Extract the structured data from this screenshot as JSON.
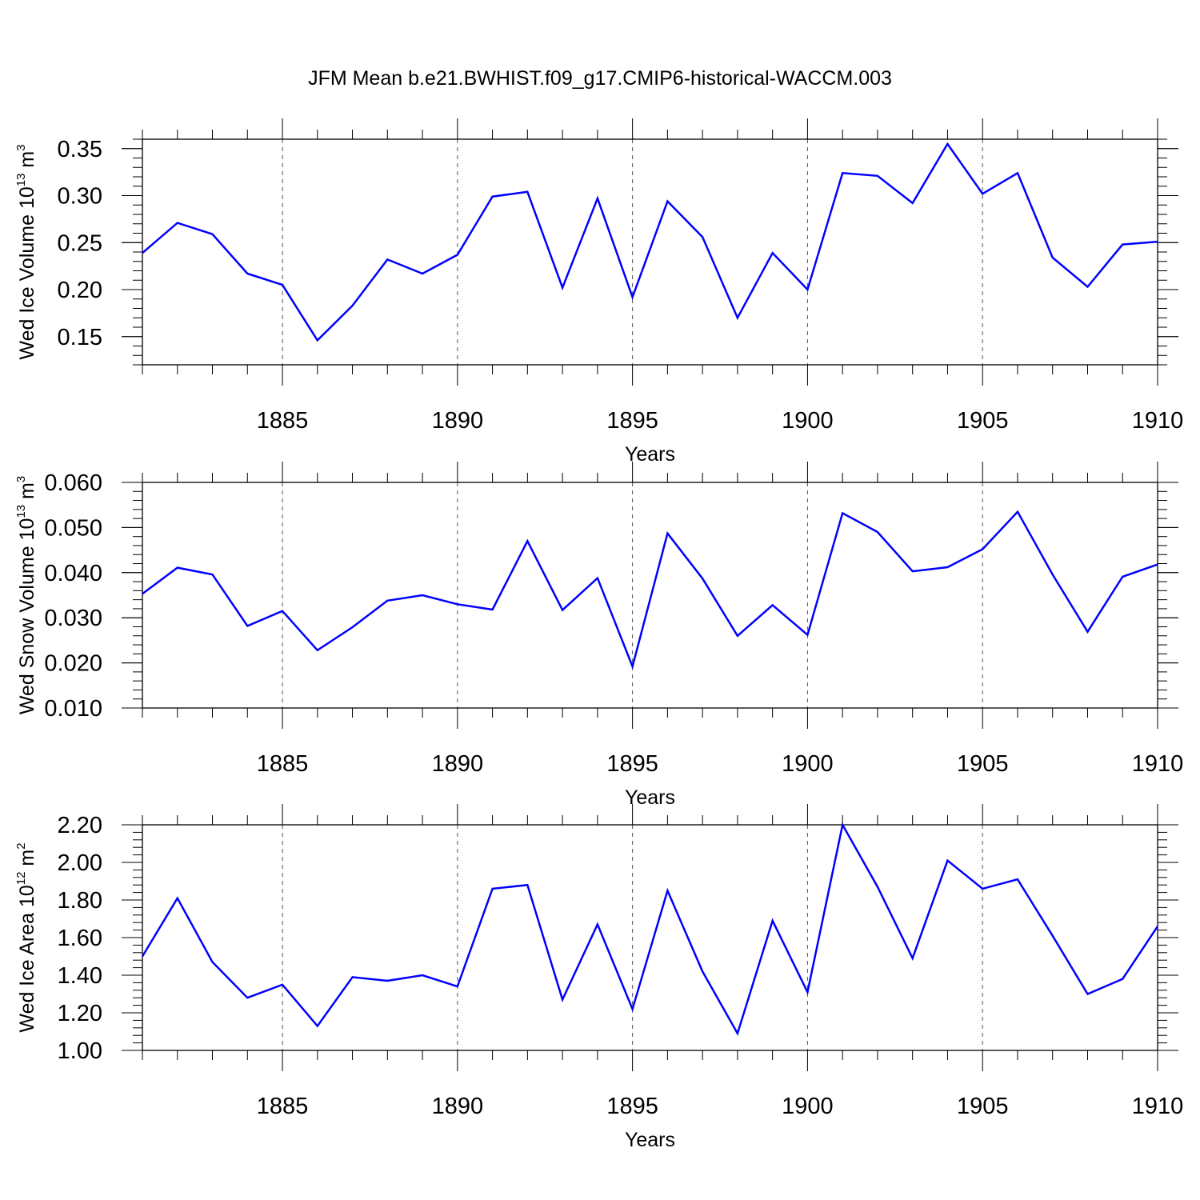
{
  "title": "JFM Mean b.e21.BWHIST.f09_g17.CMIP6-historical-WACCM.003",
  "colors": {
    "line": "#0000ff",
    "axis": "#000000",
    "grid": "#555555"
  },
  "chart_data": [
    {
      "type": "line",
      "ylabel": {
        "text": "Wed Ice Volume 10",
        "exp": "13",
        "unit_text": " m",
        "unit_exp": "3"
      },
      "xlabel": "Years",
      "xlim": [
        1881,
        1910
      ],
      "ylim": [
        0.12,
        0.36
      ],
      "yticks": [
        0.15,
        0.2,
        0.25,
        0.3,
        0.35
      ],
      "ytick_labels": [
        "0.15",
        "0.20",
        "0.25",
        "0.30",
        "0.35"
      ],
      "xticks": [
        1885,
        1890,
        1895,
        1900,
        1905,
        1910
      ],
      "xtick_labels": [
        "1885",
        "1890",
        "1895",
        "1900",
        "1905",
        "1910"
      ],
      "grid": "vertical dashed at major x ticks",
      "x": [
        1881,
        1882,
        1883,
        1884,
        1885,
        1886,
        1887,
        1888,
        1889,
        1890,
        1891,
        1892,
        1893,
        1894,
        1895,
        1896,
        1897,
        1898,
        1899,
        1900,
        1901,
        1902,
        1903,
        1904,
        1905,
        1906,
        1907,
        1908,
        1909,
        1910
      ],
      "series": [
        {
          "values": [
            0.239,
            0.271,
            0.259,
            0.217,
            0.205,
            0.146,
            0.183,
            0.232,
            0.217,
            0.237,
            0.299,
            0.304,
            0.202,
            0.297,
            0.192,
            0.294,
            0.256,
            0.17,
            0.239,
            0.2,
            0.324,
            0.321,
            0.292,
            0.355,
            0.302,
            0.324,
            0.234,
            0.203,
            0.248,
            0.251
          ]
        }
      ]
    },
    {
      "type": "line",
      "ylabel": {
        "text": "Wed Snow Volume 10",
        "exp": "13",
        "unit_text": " m",
        "unit_exp": "3"
      },
      "xlabel": "Years",
      "xlim": [
        1881,
        1910
      ],
      "ylim": [
        0.01,
        0.06
      ],
      "yticks": [
        0.01,
        0.02,
        0.03,
        0.04,
        0.05,
        0.06
      ],
      "ytick_labels": [
        "0.010",
        "0.020",
        "0.030",
        "0.040",
        "0.050",
        "0.060"
      ],
      "xticks": [
        1885,
        1890,
        1895,
        1900,
        1905,
        1910
      ],
      "xtick_labels": [
        "1885",
        "1890",
        "1895",
        "1900",
        "1905",
        "1910"
      ],
      "grid": "vertical dashed at major x ticks",
      "x": [
        1881,
        1882,
        1883,
        1884,
        1885,
        1886,
        1887,
        1888,
        1889,
        1890,
        1891,
        1892,
        1893,
        1894,
        1895,
        1896,
        1897,
        1898,
        1899,
        1900,
        1901,
        1902,
        1903,
        1904,
        1905,
        1906,
        1907,
        1908,
        1909,
        1910
      ],
      "series": [
        {
          "values": [
            0.0353,
            0.0411,
            0.0396,
            0.0282,
            0.0315,
            0.0228,
            0.0279,
            0.0338,
            0.035,
            0.033,
            0.0318,
            0.047,
            0.0317,
            0.0388,
            0.0192,
            0.0487,
            0.0387,
            0.026,
            0.0328,
            0.0262,
            0.0532,
            0.049,
            0.0403,
            0.0412,
            0.0452,
            0.0535,
            0.0396,
            0.0269,
            0.0391,
            0.0418
          ]
        }
      ]
    },
    {
      "type": "line",
      "ylabel": {
        "text": "Wed Ice Area 10",
        "exp": "12",
        "unit_text": " m",
        "unit_exp": "2"
      },
      "xlabel": "Years",
      "xlim": [
        1881,
        1910
      ],
      "ylim": [
        1.0,
        2.2
      ],
      "yticks": [
        1.0,
        1.2,
        1.4,
        1.6,
        1.8,
        2.0,
        2.2
      ],
      "ytick_labels": [
        "1.00",
        "1.20",
        "1.40",
        "1.60",
        "1.80",
        "2.00",
        "2.20"
      ],
      "xticks": [
        1885,
        1890,
        1895,
        1900,
        1905,
        1910
      ],
      "xtick_labels": [
        "1885",
        "1890",
        "1895",
        "1900",
        "1905",
        "1910"
      ],
      "grid": "vertical dashed at major x ticks",
      "x": [
        1881,
        1882,
        1883,
        1884,
        1885,
        1886,
        1887,
        1888,
        1889,
        1890,
        1891,
        1892,
        1893,
        1894,
        1895,
        1896,
        1897,
        1898,
        1899,
        1900,
        1901,
        1902,
        1903,
        1904,
        1905,
        1906,
        1907,
        1908,
        1909,
        1910
      ],
      "series": [
        {
          "values": [
            1.5,
            1.81,
            1.47,
            1.28,
            1.35,
            1.13,
            1.39,
            1.37,
            1.4,
            1.34,
            1.86,
            1.88,
            1.27,
            1.67,
            1.22,
            1.85,
            1.42,
            1.09,
            1.69,
            1.31,
            2.2,
            1.87,
            1.49,
            2.01,
            1.86,
            1.91,
            1.61,
            1.3,
            1.38,
            1.66
          ]
        }
      ]
    }
  ]
}
